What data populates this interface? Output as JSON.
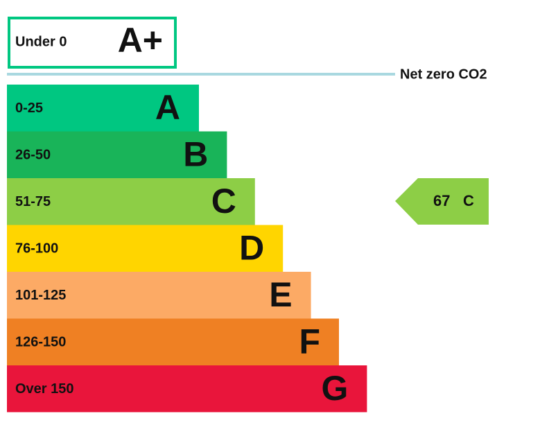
{
  "rating_above": {
    "range": "Under 0",
    "band": "A+"
  },
  "net_zero_label": "Net zero CO2",
  "bands": [
    {
      "range": "0-25",
      "band": "A",
      "color": "#00c781"
    },
    {
      "range": "26-50",
      "band": "B",
      "color": "#19b459"
    },
    {
      "range": "51-75",
      "band": "C",
      "color": "#8dce46"
    },
    {
      "range": "76-100",
      "band": "D",
      "color": "#ffd500"
    },
    {
      "range": "101-125",
      "band": "E",
      "color": "#fcaa65"
    },
    {
      "range": "126-150",
      "band": "F",
      "color": "#ef8023"
    },
    {
      "range": "Over 150",
      "band": "G",
      "color": "#e9153b"
    }
  ],
  "current": {
    "score": 67,
    "band": "C",
    "color": "#8dce46"
  }
}
